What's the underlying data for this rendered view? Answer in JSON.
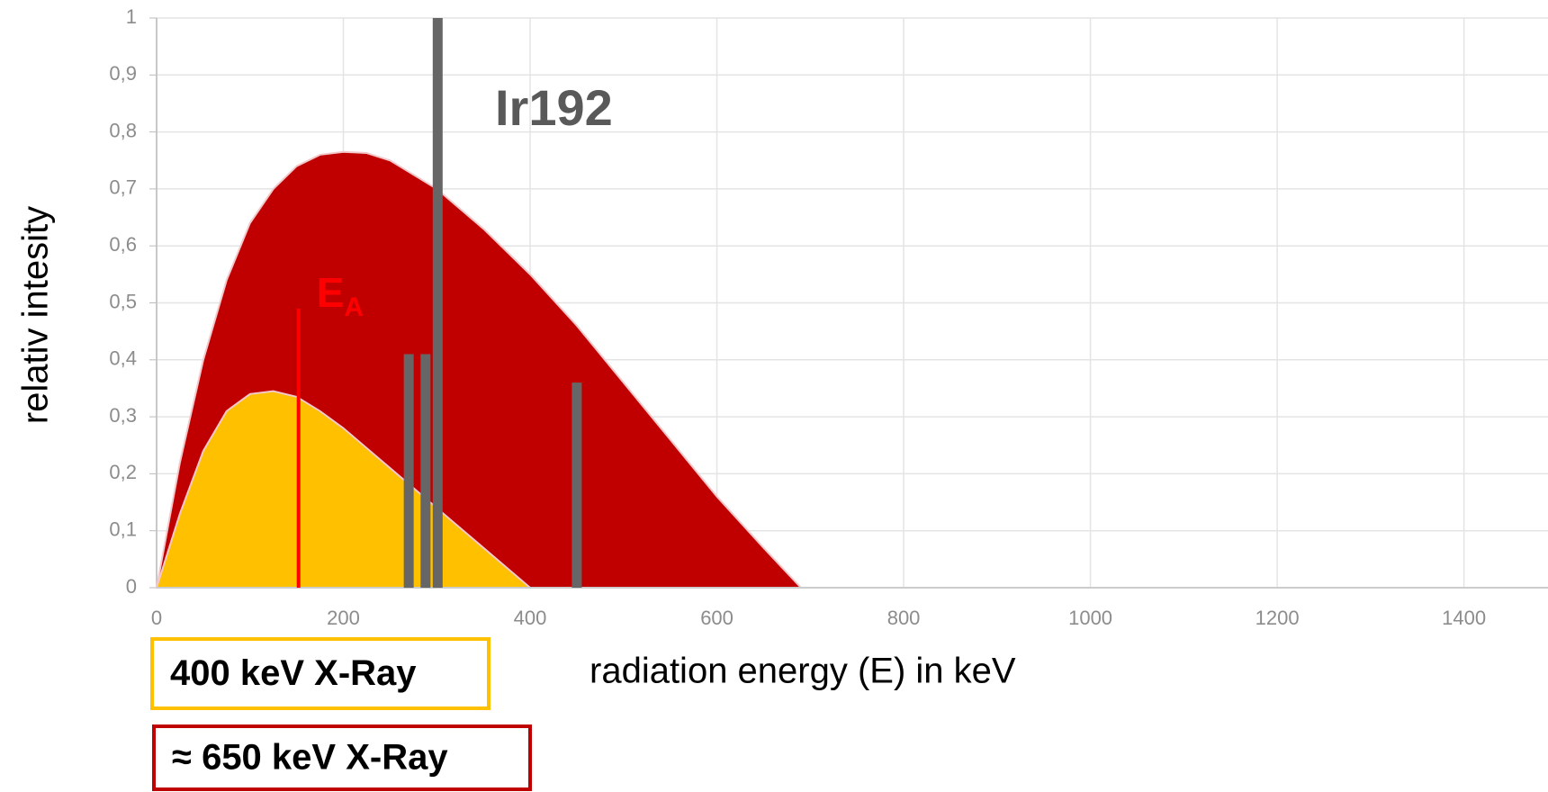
{
  "chart_data": {
    "type": "area",
    "xlabel": "radiation energy (E) in keV",
    "ylabel": "relativ intesity",
    "xlim": [
      0,
      1490
    ],
    "ylim": [
      0,
      1
    ],
    "xticks": [
      0,
      200,
      400,
      600,
      800,
      1000,
      1200,
      1400
    ],
    "yticks": [
      0,
      {
        "value": 0.1,
        "label": "0,1"
      },
      {
        "value": 0.2,
        "label": "0,2"
      },
      {
        "value": 0.3,
        "label": "0,3"
      },
      {
        "value": 0.4,
        "label": "0,4"
      },
      {
        "value": 0.5,
        "label": "0,5"
      },
      {
        "value": 0.6,
        "label": "0,6"
      },
      {
        "value": 0.7,
        "label": "0,7"
      },
      {
        "value": 0.8,
        "label": "0,8"
      },
      {
        "value": 0.9,
        "label": "0,9"
      },
      1
    ],
    "grid": true,
    "series": [
      {
        "name": "≈ 650 keV X-Ray",
        "color": "#c00000",
        "x": [
          0,
          25,
          50,
          75,
          100,
          125,
          150,
          175,
          200,
          225,
          250,
          275,
          300,
          350,
          400,
          450,
          500,
          550,
          600,
          650,
          690
        ],
        "values": [
          0,
          0.22,
          0.4,
          0.54,
          0.64,
          0.7,
          0.74,
          0.76,
          0.765,
          0.763,
          0.75,
          0.725,
          0.7,
          0.63,
          0.55,
          0.46,
          0.36,
          0.26,
          0.16,
          0.07,
          0
        ]
      },
      {
        "name": "400 keV X-Ray",
        "color": "#ffc000",
        "x": [
          0,
          25,
          50,
          75,
          100,
          125,
          150,
          175,
          200,
          250,
          300,
          350,
          400
        ],
        "values": [
          0,
          0.13,
          0.24,
          0.31,
          0.34,
          0.345,
          0.335,
          0.31,
          0.28,
          0.21,
          0.14,
          0.07,
          0
        ]
      }
    ],
    "lines": {
      "name": "Ir192",
      "color": "#666666",
      "x": [
        270,
        288,
        301,
        450
      ],
      "values": [
        0.41,
        0.41,
        1,
        0.36
      ]
    },
    "marker": {
      "label": "E",
      "subscript": "A",
      "color": "#ff0000",
      "x": 152,
      "value": 0.49
    }
  }
}
